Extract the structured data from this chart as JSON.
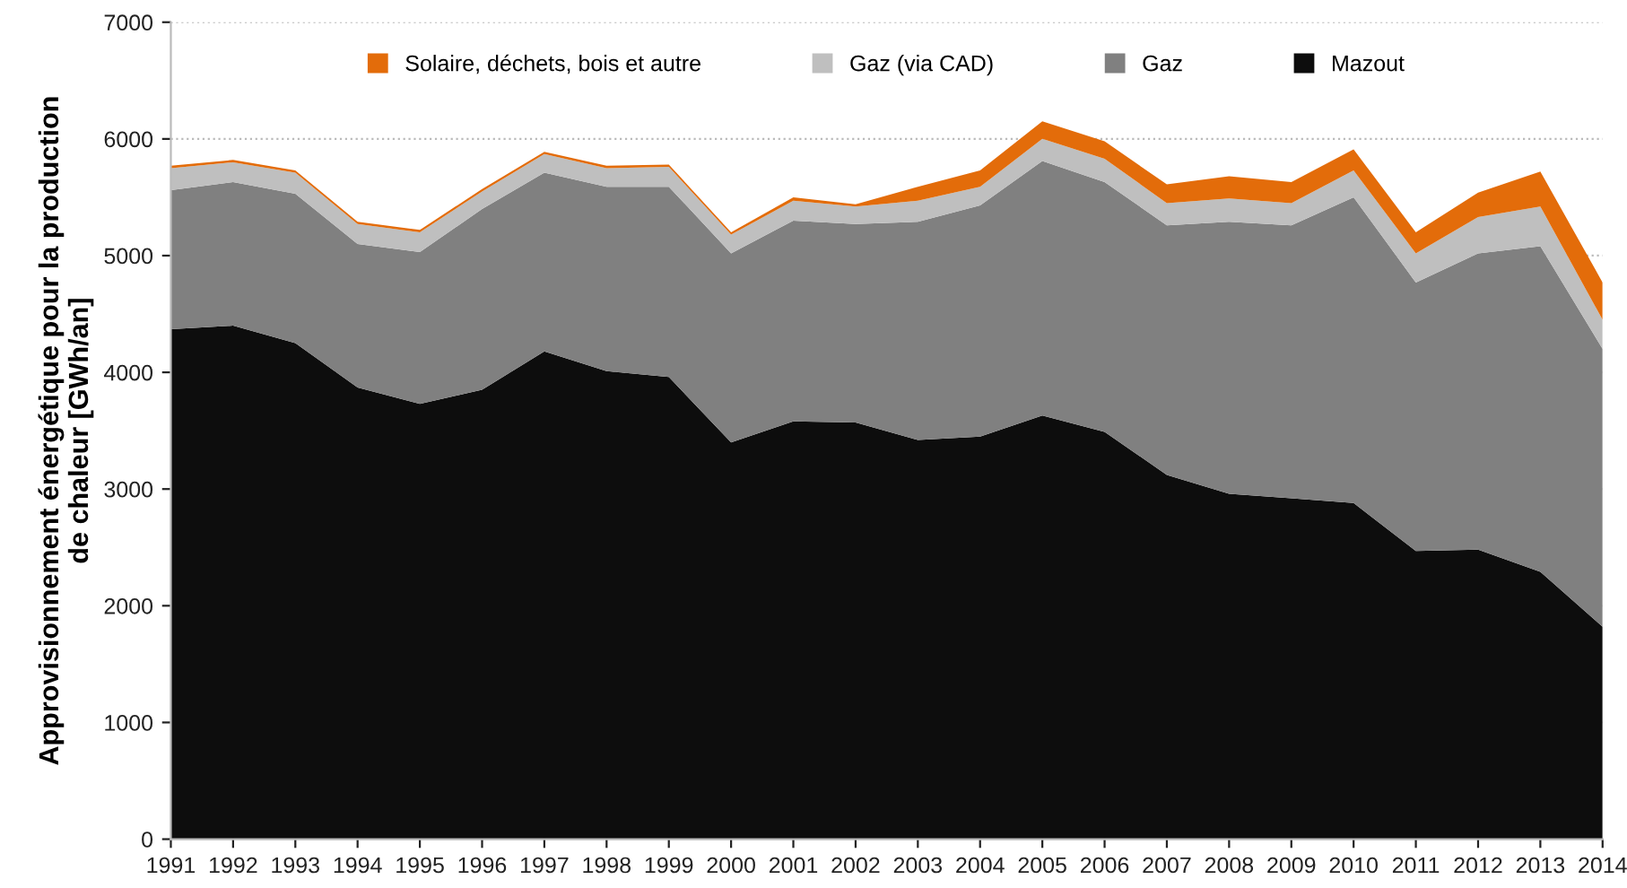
{
  "chart_data": {
    "type": "area",
    "stacked": true,
    "ylabel": "Approvisionnement énergétique pour la production\nde chaleur [GWh/an]",
    "categories": [
      "1991",
      "1992",
      "1993",
      "1994",
      "1995",
      "1996",
      "1997",
      "1998",
      "1999",
      "2000",
      "2001",
      "2002",
      "2003",
      "2004",
      "2005",
      "2006",
      "2007",
      "2008",
      "2009",
      "2010",
      "2011",
      "2012",
      "2013",
      "2014"
    ],
    "series": [
      {
        "name": "Mazout",
        "color": "#0d0d0d",
        "values": [
          4370,
          4400,
          4250,
          3870,
          3730,
          3850,
          4180,
          4010,
          3960,
          3400,
          3580,
          3570,
          3420,
          3450,
          3630,
          3490,
          3120,
          2960,
          2920,
          2880,
          2470,
          2480,
          2290,
          1820
        ]
      },
      {
        "name": "Gaz",
        "color": "#808080",
        "values": [
          1190,
          1230,
          1280,
          1230,
          1300,
          1550,
          1530,
          1580,
          1630,
          1620,
          1720,
          1700,
          1870,
          1980,
          2180,
          2140,
          2140,
          2330,
          2340,
          2620,
          2300,
          2540,
          2790,
          2380
        ]
      },
      {
        "name": "Gaz (via CAD)",
        "color": "#bfbfbf",
        "values": [
          190,
          170,
          180,
          170,
          170,
          150,
          160,
          160,
          170,
          160,
          170,
          150,
          180,
          160,
          190,
          200,
          190,
          200,
          190,
          230,
          250,
          310,
          340,
          250
        ]
      },
      {
        "name": "Solaire, déchets, bois et autre",
        "color": "#e36c0a",
        "values": [
          20,
          20,
          20,
          20,
          20,
          20,
          20,
          20,
          20,
          20,
          30,
          20,
          120,
          140,
          150,
          150,
          160,
          190,
          180,
          180,
          180,
          210,
          300,
          320
        ]
      }
    ],
    "ylim": [
      0,
      7000
    ],
    "yticks": [
      0,
      1000,
      2000,
      3000,
      4000,
      5000,
      6000,
      7000
    ],
    "grid": "y",
    "legend": "top"
  }
}
